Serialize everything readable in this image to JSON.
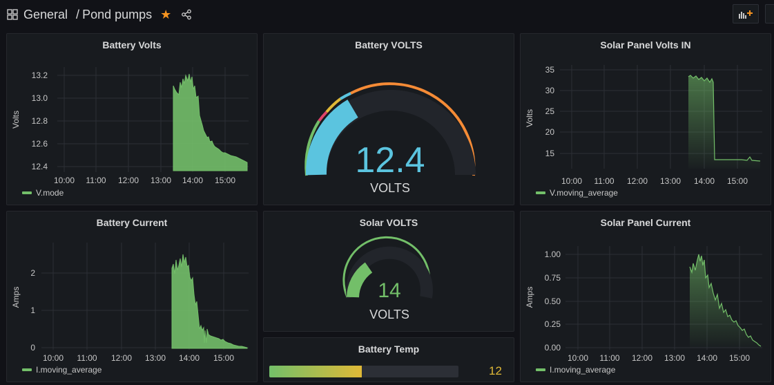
{
  "header": {
    "folder": "General",
    "separator": "/",
    "dashboard": "Pond pumps"
  },
  "colors": {
    "green": "#73bf69",
    "blue": "#5bc4df",
    "orange": "#f58b36",
    "yellow": "#e0b937",
    "red": "#e0446a",
    "star": "#f79420"
  },
  "panels": {
    "battery_volts": {
      "title": "Battery Volts",
      "ylabel": "Volts",
      "yticks": [
        "13.2",
        "13.0",
        "12.8",
        "12.6",
        "12.4"
      ],
      "xticks": [
        "10:00",
        "11:00",
        "12:00",
        "13:00",
        "14:00",
        "15:00"
      ],
      "legend": "V.mode"
    },
    "battery_volts_gauge": {
      "title": "Battery VOLTS",
      "value": "12.4",
      "unit": "VOLTS"
    },
    "solar_panel_volts": {
      "title": "Solar Panel Volts IN",
      "ylabel": "Volts",
      "yticks": [
        "35",
        "30",
        "25",
        "20",
        "15"
      ],
      "xticks": [
        "10:00",
        "11:00",
        "12:00",
        "13:00",
        "14:00",
        "15:00"
      ],
      "legend": "V.moving_average"
    },
    "battery_current": {
      "title": "Battery Current",
      "ylabel": "Amps",
      "yticks": [
        "2",
        "1",
        "0"
      ],
      "xticks": [
        "10:00",
        "11:00",
        "12:00",
        "13:00",
        "14:00",
        "15:00"
      ],
      "legend": "I.moving_average"
    },
    "solar_volts_gauge": {
      "title": "Solar VOLTS",
      "value": "14",
      "unit": "VOLTS"
    },
    "battery_temp": {
      "title": "Battery Temp",
      "value": "12",
      "fill_fraction": 0.49
    },
    "solar_panel_current": {
      "title": "Solar Panel Current",
      "ylabel": "Amps",
      "yticks": [
        "1.00",
        "0.75",
        "0.50",
        "0.25",
        "0.00"
      ],
      "xticks": [
        "10:00",
        "11:00",
        "12:00",
        "13:00",
        "14:00",
        "15:00"
      ],
      "legend": "I.moving_average"
    }
  }
}
